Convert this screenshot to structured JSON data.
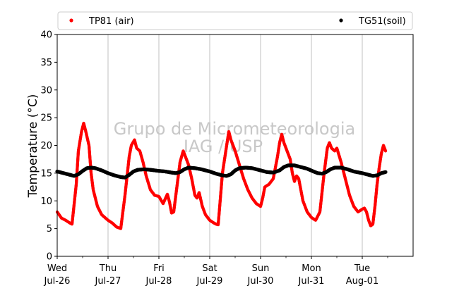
{
  "chart_data": {
    "type": "scatter",
    "title": "",
    "ylabel": "Temperature (°C)",
    "xlabel": "",
    "ylim": [
      0,
      40
    ],
    "xlim": [
      "2023-07-26 00:00",
      "2023-08-02 00:00"
    ],
    "yticks": [
      0,
      5,
      10,
      15,
      20,
      25,
      30,
      35,
      40
    ],
    "xticks": [
      {
        "x": "2023-07-26 00:00",
        "day": "Wed",
        "date": "Jul-26"
      },
      {
        "x": "2023-07-27 00:00",
        "day": "Thu",
        "date": "Jul-27"
      },
      {
        "x": "2023-07-28 00:00",
        "day": "Fri",
        "date": "Jul-28"
      },
      {
        "x": "2023-07-29 00:00",
        "day": "Sat",
        "date": "Jul-29"
      },
      {
        "x": "2023-07-30 00:00",
        "day": "Sun",
        "date": "Jul-30"
      },
      {
        "x": "2023-07-31 00:00",
        "day": "Mon",
        "date": "Jul-31"
      },
      {
        "x": "2023-08-01 00:00",
        "day": "Tue",
        "date": "Aug-01"
      }
    ],
    "grid": "vertical",
    "legend_position": "top",
    "watermark": [
      "Grupo de Micrometeorologia",
      "IAG / USP"
    ],
    "series": [
      {
        "name": "TP81 (air)",
        "color": "#ff0000",
        "points": [
          [
            "2023-07-26 00:00",
            8.0
          ],
          [
            "2023-07-26 02:00",
            6.9
          ],
          [
            "2023-07-26 04:00",
            6.5
          ],
          [
            "2023-07-26 06:00",
            6.0
          ],
          [
            "2023-07-26 07:00",
            5.8
          ],
          [
            "2023-07-26 09:00",
            13.0
          ],
          [
            "2023-07-26 10:00",
            19.0
          ],
          [
            "2023-07-26 11:30",
            22.5
          ],
          [
            "2023-07-26 12:30",
            24.0
          ],
          [
            "2023-07-26 13:30",
            22.5
          ],
          [
            "2023-07-26 15:00",
            20.0
          ],
          [
            "2023-07-26 16:00",
            15.0
          ],
          [
            "2023-07-26 17:00",
            12.0
          ],
          [
            "2023-07-26 19:00",
            9.0
          ],
          [
            "2023-07-26 21:00",
            7.5
          ],
          [
            "2023-07-27 00:00",
            6.5
          ],
          [
            "2023-07-27 02:00",
            6.0
          ],
          [
            "2023-07-27 04:00",
            5.3
          ],
          [
            "2023-07-27 06:00",
            5.0
          ],
          [
            "2023-07-27 08:00",
            11.0
          ],
          [
            "2023-07-27 10:00",
            18.0
          ],
          [
            "2023-07-27 11:00",
            20.0
          ],
          [
            "2023-07-27 12:30",
            21.0
          ],
          [
            "2023-07-27 13:30",
            19.5
          ],
          [
            "2023-07-27 15:00",
            19.0
          ],
          [
            "2023-07-27 16:30",
            17.0
          ],
          [
            "2023-07-27 18:00",
            14.5
          ],
          [
            "2023-07-27 20:00",
            12.0
          ],
          [
            "2023-07-27 22:00",
            11.0
          ],
          [
            "2023-07-28 00:00",
            10.8
          ],
          [
            "2023-07-28 02:00",
            9.5
          ],
          [
            "2023-07-28 04:00",
            11.2
          ],
          [
            "2023-07-28 05:00",
            9.8
          ],
          [
            "2023-07-28 06:00",
            7.8
          ],
          [
            "2023-07-28 07:00",
            8.0
          ],
          [
            "2023-07-28 09:00",
            14.0
          ],
          [
            "2023-07-28 10:00",
            17.0
          ],
          [
            "2023-07-28 11:30",
            19.0
          ],
          [
            "2023-07-28 13:00",
            17.5
          ],
          [
            "2023-07-28 14:00",
            16.5
          ],
          [
            "2023-07-28 15:30",
            14.0
          ],
          [
            "2023-07-28 17:00",
            11.0
          ],
          [
            "2023-07-28 18:00",
            10.5
          ],
          [
            "2023-07-28 19:00",
            11.5
          ],
          [
            "2023-07-28 20:30",
            9.0
          ],
          [
            "2023-07-28 22:00",
            7.5
          ],
          [
            "2023-07-29 00:00",
            6.5
          ],
          [
            "2023-07-29 02:00",
            6.0
          ],
          [
            "2023-07-29 03:00",
            5.8
          ],
          [
            "2023-07-29 04:00",
            5.7
          ],
          [
            "2023-07-29 06:00",
            15.0
          ],
          [
            "2023-07-29 08:00",
            20.0
          ],
          [
            "2023-07-29 09:00",
            22.5
          ],
          [
            "2023-07-29 10:00",
            21.0
          ],
          [
            "2023-07-29 12:00",
            19.0
          ],
          [
            "2023-07-29 14:00",
            16.5
          ],
          [
            "2023-07-29 16:00",
            14.0
          ],
          [
            "2023-07-29 18:00",
            12.0
          ],
          [
            "2023-07-29 20:00",
            10.5
          ],
          [
            "2023-07-29 22:00",
            9.5
          ],
          [
            "2023-07-30 00:00",
            9.0
          ],
          [
            "2023-07-30 01:00",
            10.5
          ],
          [
            "2023-07-30 02:00",
            12.5
          ],
          [
            "2023-07-30 04:00",
            13.0
          ],
          [
            "2023-07-30 06:00",
            14.0
          ],
          [
            "2023-07-30 08:00",
            18.0
          ],
          [
            "2023-07-30 09:00",
            20.5
          ],
          [
            "2023-07-30 10:00",
            22.0
          ],
          [
            "2023-07-30 11:00",
            20.5
          ],
          [
            "2023-07-30 12:30",
            19.0
          ],
          [
            "2023-07-30 14:00",
            17.5
          ],
          [
            "2023-07-30 15:00",
            15.0
          ],
          [
            "2023-07-30 16:00",
            13.5
          ],
          [
            "2023-07-30 17:00",
            14.5
          ],
          [
            "2023-07-30 18:00",
            14.0
          ],
          [
            "2023-07-30 20:00",
            10.0
          ],
          [
            "2023-07-30 22:00",
            8.0
          ],
          [
            "2023-07-31 00:00",
            7.0
          ],
          [
            "2023-07-31 02:00",
            6.5
          ],
          [
            "2023-07-31 04:00",
            8.0
          ],
          [
            "2023-07-31 06:00",
            15.0
          ],
          [
            "2023-07-31 07:30",
            19.5
          ],
          [
            "2023-07-31 08:30",
            20.5
          ],
          [
            "2023-07-31 09:30",
            19.5
          ],
          [
            "2023-07-31 11:00",
            19.0
          ],
          [
            "2023-07-31 12:00",
            19.5
          ],
          [
            "2023-07-31 14:00",
            17.0
          ],
          [
            "2023-07-31 16:00",
            14.0
          ],
          [
            "2023-07-31 18:00",
            11.0
          ],
          [
            "2023-07-31 20:00",
            9.0
          ],
          [
            "2023-07-31 22:00",
            8.0
          ],
          [
            "2023-08-01 00:00",
            8.5
          ],
          [
            "2023-08-01 01:00",
            8.7
          ],
          [
            "2023-08-01 02:00",
            8.0
          ],
          [
            "2023-08-01 03:00",
            6.5
          ],
          [
            "2023-08-01 04:00",
            5.5
          ],
          [
            "2023-08-01 05:00",
            5.8
          ],
          [
            "2023-08-01 06:00",
            9.0
          ],
          [
            "2023-08-01 07:00",
            13.0
          ],
          [
            "2023-08-01 08:00",
            16.0
          ],
          [
            "2023-08-01 09:00",
            18.5
          ],
          [
            "2023-08-01 10:00",
            20.0
          ],
          [
            "2023-08-01 11:00",
            19.0
          ]
        ]
      },
      {
        "name": "TG51(soil)",
        "color": "#000000",
        "points": [
          [
            "2023-07-26 00:00",
            15.3
          ],
          [
            "2023-07-26 03:00",
            15.0
          ],
          [
            "2023-07-26 06:00",
            14.7
          ],
          [
            "2023-07-26 08:00",
            14.5
          ],
          [
            "2023-07-26 10:00",
            14.8
          ],
          [
            "2023-07-26 12:00",
            15.4
          ],
          [
            "2023-07-26 14:00",
            15.9
          ],
          [
            "2023-07-26 16:00",
            16.0
          ],
          [
            "2023-07-26 18:00",
            15.9
          ],
          [
            "2023-07-26 21:00",
            15.5
          ],
          [
            "2023-07-27 00:00",
            15.0
          ],
          [
            "2023-07-27 03:00",
            14.6
          ],
          [
            "2023-07-27 06:00",
            14.3
          ],
          [
            "2023-07-27 08:00",
            14.2
          ],
          [
            "2023-07-27 10:00",
            14.7
          ],
          [
            "2023-07-27 12:00",
            15.3
          ],
          [
            "2023-07-27 14:00",
            15.6
          ],
          [
            "2023-07-27 17:00",
            15.7
          ],
          [
            "2023-07-27 20:00",
            15.6
          ],
          [
            "2023-07-28 00:00",
            15.4
          ],
          [
            "2023-07-28 03:00",
            15.3
          ],
          [
            "2023-07-28 06:00",
            15.1
          ],
          [
            "2023-07-28 08:00",
            15.0
          ],
          [
            "2023-07-28 10:00",
            15.2
          ],
          [
            "2023-07-28 12:00",
            15.7
          ],
          [
            "2023-07-28 14:00",
            16.0
          ],
          [
            "2023-07-28 17:00",
            15.9
          ],
          [
            "2023-07-28 20:00",
            15.7
          ],
          [
            "2023-07-29 00:00",
            15.3
          ],
          [
            "2023-07-29 03:00",
            14.9
          ],
          [
            "2023-07-29 06:00",
            14.6
          ],
          [
            "2023-07-29 08:00",
            14.5
          ],
          [
            "2023-07-29 10:00",
            14.8
          ],
          [
            "2023-07-29 12:00",
            15.5
          ],
          [
            "2023-07-29 14:00",
            15.9
          ],
          [
            "2023-07-29 17:00",
            16.0
          ],
          [
            "2023-07-29 20:00",
            15.9
          ],
          [
            "2023-07-30 00:00",
            15.5
          ],
          [
            "2023-07-30 03:00",
            15.2
          ],
          [
            "2023-07-30 06:00",
            15.1
          ],
          [
            "2023-07-30 09:00",
            15.5
          ],
          [
            "2023-07-30 11:00",
            16.1
          ],
          [
            "2023-07-30 13:00",
            16.4
          ],
          [
            "2023-07-30 16:00",
            16.4
          ],
          [
            "2023-07-30 19:00",
            16.1
          ],
          [
            "2023-07-30 22:00",
            15.8
          ],
          [
            "2023-07-31 01:00",
            15.3
          ],
          [
            "2023-07-31 03:00",
            15.0
          ],
          [
            "2023-07-31 05:00",
            14.9
          ],
          [
            "2023-07-31 07:00",
            15.2
          ],
          [
            "2023-07-31 09:00",
            15.7
          ],
          [
            "2023-07-31 11:00",
            16.0
          ],
          [
            "2023-07-31 14:00",
            16.0
          ],
          [
            "2023-07-31 17:00",
            15.7
          ],
          [
            "2023-07-31 20:00",
            15.3
          ],
          [
            "2023-08-01 00:00",
            15.0
          ],
          [
            "2023-08-01 03:00",
            14.7
          ],
          [
            "2023-08-01 05:00",
            14.5
          ],
          [
            "2023-08-01 07:00",
            14.6
          ],
          [
            "2023-08-01 09:00",
            15.0
          ],
          [
            "2023-08-01 11:00",
            15.2
          ]
        ]
      }
    ]
  }
}
